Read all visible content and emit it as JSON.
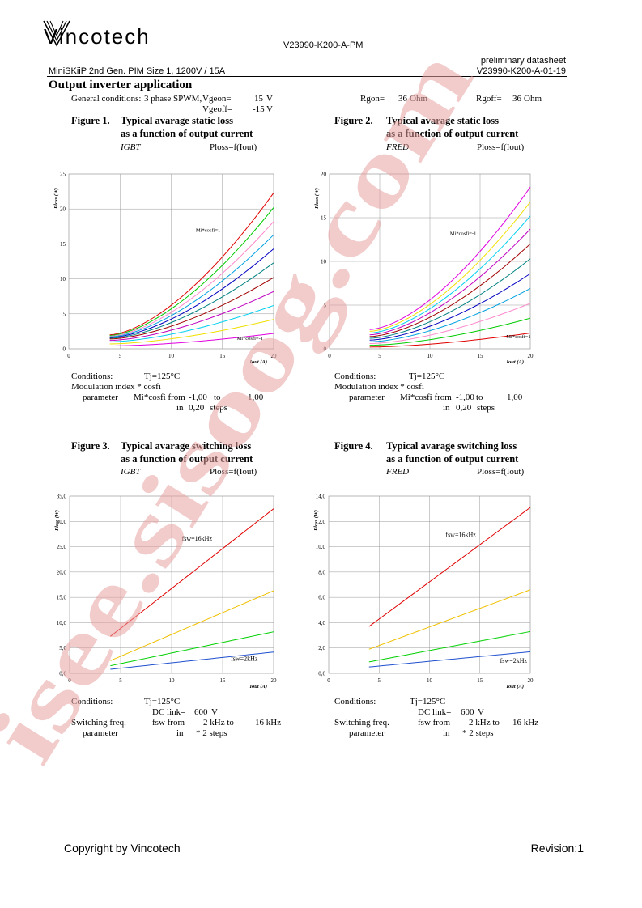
{
  "header": {
    "brand": "Vincotech",
    "doc_id": "V23990-K200-A-PM",
    "status": "preliminary datasheet",
    "product": "MiniSKiiP 2nd Gen. PIM Size 1, 1200V / 15A",
    "doc_number": "V23990-K200-A-01-19"
  },
  "section_title": "Output inverter application",
  "general": {
    "label": "General conditions:",
    "mode": "3 phase SPWM,",
    "vgeon_label": "Vgeon=",
    "vgeon_value": "15",
    "vgeon_unit": "V",
    "vgeoff_label": "Vgeoff=",
    "vgeoff_value": "-15",
    "vgeoff_unit": "V",
    "rgon_label": "Rgon=",
    "rgon_value": "36",
    "rgon_unit": "Ohm",
    "rgoff_label": "Rgoff=",
    "rgoff_value": "36",
    "rgoff_unit": "Ohm"
  },
  "figures": [
    {
      "num": "Figure 1.",
      "line1": "Typical avarage static loss",
      "line2": "as a function of output current",
      "device": "IGBT",
      "func": "Ploss=f(Iout)"
    },
    {
      "num": "Figure 2.",
      "line1": "Typical avarage static loss",
      "line2": "as a function of output current",
      "device": "FRED",
      "func": "Ploss=f(Iout)"
    },
    {
      "num": "Figure 3.",
      "line1": "Typical avarage switching loss",
      "line2": "as a function of output current",
      "device": "IGBT",
      "func": "Ploss=f(Iout)"
    },
    {
      "num": "Figure 4.",
      "line1": "Typical avarage switching loss",
      "line2": "as a function of output current",
      "device": "FRED",
      "func": "Ploss=f(Iout)"
    }
  ],
  "cond_static": {
    "label": "Conditions:",
    "tj": "Tj=125°C",
    "mod": "Modulation index * cosfi",
    "param": "parameter",
    "mi": "Mi*cosfi from",
    "from": "-1,00",
    "to_label": "to",
    "to": "1,00",
    "in_label": "in",
    "steps": "0,20",
    "steps_label": "steps"
  },
  "cond_switch": {
    "label": "Conditions:",
    "tj": "Tj=125°C",
    "dc_label": "DC link=",
    "dc_value": "600",
    "dc_unit": "V",
    "sw_label": "Switching freq.",
    "fsw_from_label": "fsw from",
    "fsw_from": "2 kHz to",
    "fsw_to": "16 kHz",
    "param": "parameter",
    "in_label": "in",
    "steps": "* 2 steps"
  },
  "chart_data": [
    {
      "type": "line",
      "ylabel": "Ploss (W)",
      "xlabel": "Iout (A)",
      "xlim": [
        0,
        20
      ],
      "ylim": [
        0,
        25
      ],
      "xticks": [
        "0",
        "5",
        "10",
        "15",
        "20"
      ],
      "yticks": [
        "0",
        "5",
        "10",
        "15",
        "20",
        "25"
      ],
      "x_start": 4,
      "x_end": 20,
      "annotations": [
        "Mi*cosfi=1",
        "Mi*cosfi=-1"
      ],
      "series": [
        {
          "color": "#e00000",
          "y_start": 2.0,
          "y_end": 22.3
        },
        {
          "color": "#00cc00",
          "y_start": 1.9,
          "y_end": 20.2
        },
        {
          "color": "#ff88cc",
          "y_start": 1.8,
          "y_end": 18.2
        },
        {
          "color": "#00a0e0",
          "y_start": 1.7,
          "y_end": 16.3
        },
        {
          "color": "#0000c0",
          "y_start": 1.6,
          "y_end": 14.3
        },
        {
          "color": "#008080",
          "y_start": 1.5,
          "y_end": 12.3
        },
        {
          "color": "#a00000",
          "y_start": 1.4,
          "y_end": 10.2
        },
        {
          "color": "#c000c0",
          "y_start": 1.2,
          "y_end": 8.2
        },
        {
          "color": "#00d0f0",
          "y_start": 1.0,
          "y_end": 6.2
        },
        {
          "color": "#f0e000",
          "y_start": 0.7,
          "y_end": 4.2
        },
        {
          "color": "#e000e0",
          "y_start": 0.4,
          "y_end": 2.2
        }
      ]
    },
    {
      "type": "line",
      "ylabel": "Ploss (W)",
      "xlabel": "Iout (A)",
      "xlim": [
        0,
        20
      ],
      "ylim": [
        0,
        20
      ],
      "xticks": [
        "0",
        "5",
        "10",
        "15",
        "20"
      ],
      "yticks": [
        "0",
        "5",
        "10",
        "15",
        "20"
      ],
      "x_start": 4,
      "x_end": 20,
      "annotations": [
        "Mi*cosfi=-1",
        "Mi*cosfi=1"
      ],
      "series": [
        {
          "color": "#e000e0",
          "y_start": 2.2,
          "y_end": 18.5
        },
        {
          "color": "#f0e000",
          "y_start": 2.0,
          "y_end": 16.8
        },
        {
          "color": "#00d0f0",
          "y_start": 1.8,
          "y_end": 15.2
        },
        {
          "color": "#c000c0",
          "y_start": 1.6,
          "y_end": 13.7
        },
        {
          "color": "#a00000",
          "y_start": 1.4,
          "y_end": 12.0
        },
        {
          "color": "#008080",
          "y_start": 1.2,
          "y_end": 10.3
        },
        {
          "color": "#0000c0",
          "y_start": 1.0,
          "y_end": 8.6
        },
        {
          "color": "#00a0e0",
          "y_start": 0.8,
          "y_end": 6.9
        },
        {
          "color": "#ff88cc",
          "y_start": 0.6,
          "y_end": 5.2
        },
        {
          "color": "#00cc00",
          "y_start": 0.4,
          "y_end": 3.5
        },
        {
          "color": "#e00000",
          "y_start": 0.2,
          "y_end": 1.8
        }
      ]
    },
    {
      "type": "line",
      "ylabel": "Ploss (W)",
      "xlabel": "Iout (A)",
      "xlim": [
        0,
        20
      ],
      "ylim": [
        0,
        35
      ],
      "xticks": [
        "0",
        "5",
        "10",
        "15",
        "20"
      ],
      "yticks": [
        "0,0",
        "5,0",
        "10,0",
        "15,0",
        "20,0",
        "25,0",
        "30,0",
        "35,0"
      ],
      "x_start": 4,
      "x_end": 20,
      "annotations": [
        "fsw=16kHz",
        "fsw=2kHz"
      ],
      "series": [
        {
          "color": "#e00000",
          "y_start": 7.3,
          "y_end": 32.5
        },
        {
          "color": "#f0c000",
          "y_start": 2.5,
          "y_end": 16.3
        },
        {
          "color": "#00d000",
          "y_start": 1.5,
          "y_end": 8.2
        },
        {
          "color": "#2050d0",
          "y_start": 0.8,
          "y_end": 4.2
        }
      ]
    },
    {
      "type": "line",
      "ylabel": "Ploss (W)",
      "xlabel": "Iout (A)",
      "xlim": [
        0,
        20
      ],
      "ylim": [
        0,
        14
      ],
      "xticks": [
        "0",
        "5",
        "10",
        "15",
        "20"
      ],
      "yticks": [
        "0,0",
        "2,0",
        "4,0",
        "6,0",
        "8,0",
        "10,0",
        "12,0",
        "14,0"
      ],
      "x_start": 4,
      "x_end": 20,
      "annotations": [
        "fsw=16kHz",
        "fsw=2kHz"
      ],
      "series": [
        {
          "color": "#e00000",
          "y_start": 3.7,
          "y_end": 13.1
        },
        {
          "color": "#f0c000",
          "y_start": 1.9,
          "y_end": 6.6
        },
        {
          "color": "#00d000",
          "y_start": 0.9,
          "y_end": 3.3
        },
        {
          "color": "#2050d0",
          "y_start": 0.5,
          "y_end": 1.7
        }
      ]
    }
  ],
  "footer": {
    "copyright": "Copyright by Vincotech",
    "revision": "Revision:1"
  },
  "watermark": {
    "text": "isee.sisoog.com",
    "color": "#e8a0a0"
  }
}
